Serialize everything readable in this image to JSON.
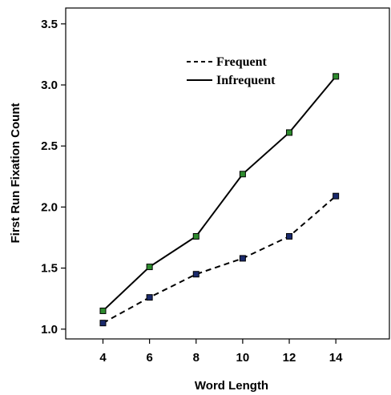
{
  "chart_data": {
    "type": "line",
    "title": "",
    "xlabel": "Word Length",
    "ylabel": "First Run Fixation Count",
    "x": [
      4,
      6,
      8,
      10,
      12,
      14
    ],
    "x_ticks": [
      "4",
      "6",
      "8",
      "10",
      "12",
      "14"
    ],
    "y_ticks": [
      "1.0",
      "1.5",
      "2.0",
      "2.5",
      "3.0",
      "3.5"
    ],
    "xlim": [
      2.4,
      16.3
    ],
    "ylim": [
      0.92,
      3.63
    ],
    "grid": false,
    "legend_position": "top-center",
    "series": [
      {
        "name": "Frequent",
        "line_style": "dashed",
        "marker_color": "#1a2a6c",
        "values": [
          1.05,
          1.26,
          1.45,
          1.58,
          1.76,
          2.09
        ]
      },
      {
        "name": "Infrequent",
        "line_style": "solid",
        "marker_color": "#2e8b2e",
        "values": [
          1.15,
          1.51,
          1.76,
          2.27,
          2.61,
          3.07
        ]
      }
    ]
  }
}
